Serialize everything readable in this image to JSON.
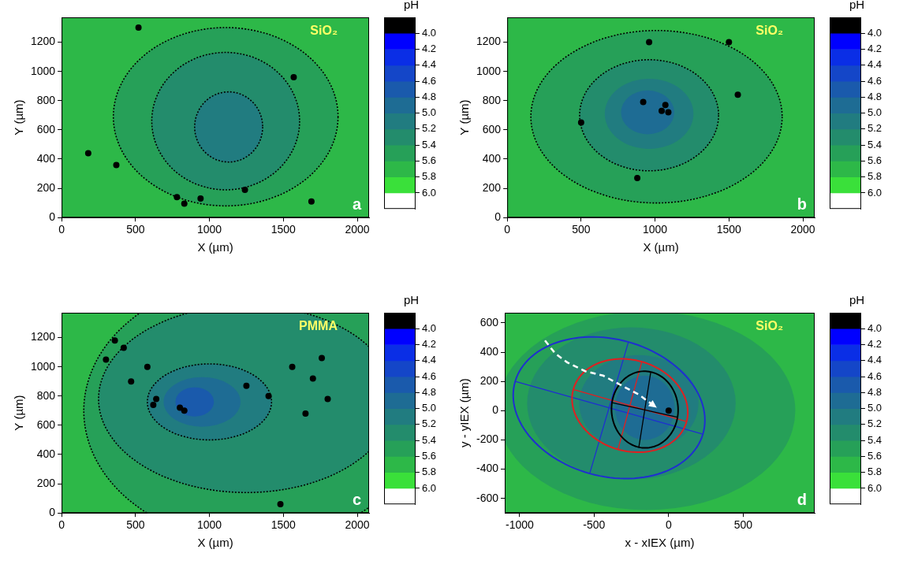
{
  "chart_data": [
    {
      "type": "heatmap",
      "panel": "a",
      "annotation": "SiO₂",
      "x_label": "X (µm)",
      "y_label": "Y (µm)",
      "xlim": [
        0,
        2080
      ],
      "xticks": [
        0,
        500,
        1000,
        1500,
        2000
      ],
      "ylim": [
        0,
        1370
      ],
      "yticks": [
        0,
        200,
        400,
        600,
        800,
        1000,
        1200
      ],
      "grid": false,
      "background_pH": 5.7,
      "regions": [
        {
          "pH": 5.5,
          "center": [
            1110,
            690
          ],
          "rx": 760,
          "ry": 610,
          "line_style": "dotted"
        },
        {
          "pH": 5.3,
          "center": [
            1110,
            660
          ],
          "rx": 500,
          "ry": 470,
          "line_style": "dotted"
        },
        {
          "pH": 5.1,
          "center": [
            1130,
            620
          ],
          "rx": 230,
          "ry": 240,
          "line_style": "dotted"
        }
      ],
      "series": [
        {
          "type": "scatter",
          "color": "#000000",
          "marker": "circle",
          "values": [
            [
              180,
              440
            ],
            [
              370,
              360
            ],
            [
              520,
              1300
            ],
            [
              780,
              140
            ],
            [
              830,
              95
            ],
            [
              940,
              130
            ],
            [
              1240,
              190
            ],
            [
              1570,
              960
            ],
            [
              1690,
              110
            ]
          ]
        }
      ],
      "colorbar": {
        "title": "pH",
        "ylim": [
          3.8,
          6.2
        ],
        "levels": [
          3.8,
          4.0,
          4.2,
          4.4,
          4.6,
          4.8,
          5.0,
          5.2,
          5.4,
          5.6,
          5.8,
          6.0,
          6.2
        ],
        "colors": [
          "#000000",
          "#0000ff",
          "#0a2ee6",
          "#1446c8",
          "#1a5aac",
          "#1e6c94",
          "#217c80",
          "#238c6c",
          "#26a058",
          "#2db848",
          "#3ae03a",
          "#ffffff"
        ],
        "yticks": [
          {
            "value": 4.0,
            "label": "4.0"
          },
          {
            "value": 4.2,
            "label": "4.2"
          },
          {
            "value": 4.4,
            "label": "4.4"
          },
          {
            "value": 4.6,
            "label": "4.6"
          },
          {
            "value": 4.8,
            "label": "4.8"
          },
          {
            "value": 5.0,
            "label": "5.0"
          },
          {
            "value": 5.2,
            "label": "5.2"
          },
          {
            "value": 5.4,
            "label": "5.4"
          },
          {
            "value": 5.6,
            "label": "5.6"
          },
          {
            "value": 5.8,
            "label": "5.8"
          },
          {
            "value": 6.0,
            "label": "6.0"
          }
        ]
      }
    },
    {
      "type": "heatmap",
      "panel": "b",
      "annotation": "SiO₂",
      "x_label": "X (µm)",
      "y_label": "Y (µm)",
      "xlim": [
        0,
        2080
      ],
      "xticks": [
        0,
        500,
        1000,
        1500,
        2000
      ],
      "ylim": [
        0,
        1370
      ],
      "yticks": [
        0,
        200,
        400,
        600,
        800,
        1000,
        1200
      ],
      "grid": false,
      "background_pH": 5.7,
      "regions": [
        {
          "pH": 5.5,
          "center": [
            1010,
            690
          ],
          "rx": 850,
          "ry": 590,
          "line_style": "dotted"
        },
        {
          "pH": 5.3,
          "center": [
            960,
            700
          ],
          "rx": 470,
          "ry": 380,
          "line_style": "dotted"
        },
        {
          "pH": 5.1,
          "center": [
            960,
            710
          ],
          "rx": 300,
          "ry": 240
        },
        {
          "pH": 4.9,
          "center": [
            950,
            720
          ],
          "rx": 180,
          "ry": 150
        }
      ],
      "series": [
        {
          "type": "scatter",
          "color": "#000000",
          "marker": "circle",
          "values": [
            [
              960,
              1200
            ],
            [
              1070,
              770
            ],
            [
              1045,
              730
            ],
            [
              1090,
              720
            ],
            [
              920,
              790
            ],
            [
              880,
              270
            ],
            [
              500,
              650
            ],
            [
              1560,
              840
            ],
            [
              1500,
              1200
            ]
          ]
        }
      ],
      "colorbar": {
        "title": "pH",
        "ylim": [
          3.8,
          6.2
        ],
        "levels": [
          3.8,
          4.0,
          4.2,
          4.4,
          4.6,
          4.8,
          5.0,
          5.2,
          5.4,
          5.6,
          5.8,
          6.0,
          6.2
        ],
        "colors": [
          "#000000",
          "#0000ff",
          "#0a2ee6",
          "#1446c8",
          "#1a5aac",
          "#1e6c94",
          "#217c80",
          "#238c6c",
          "#26a058",
          "#2db848",
          "#3ae03a",
          "#ffffff"
        ],
        "yticks": [
          {
            "value": 4.0,
            "label": "4.0"
          },
          {
            "value": 4.2,
            "label": "4.2"
          },
          {
            "value": 4.4,
            "label": "4.4"
          },
          {
            "value": 4.6,
            "label": "4.6"
          },
          {
            "value": 4.8,
            "label": "4.8"
          },
          {
            "value": 5.0,
            "label": "5.0"
          },
          {
            "value": 5.2,
            "label": "5.2"
          },
          {
            "value": 5.4,
            "label": "5.4"
          },
          {
            "value": 5.6,
            "label": "5.6"
          },
          {
            "value": 5.8,
            "label": "5.8"
          },
          {
            "value": 6.0,
            "label": "6.0"
          }
        ]
      }
    },
    {
      "type": "heatmap",
      "panel": "c",
      "annotation": "PMMA",
      "x_label": "X (µm)",
      "y_label": "Y (µm)",
      "xlim": [
        0,
        2080
      ],
      "xticks": [
        0,
        500,
        1000,
        1500,
        2000
      ],
      "ylim": [
        0,
        1370
      ],
      "yticks": [
        0,
        200,
        400,
        600,
        800,
        1000,
        1200
      ],
      "grid": false,
      "background_pH": 5.7,
      "regions": [
        {
          "pH": 5.5,
          "center": [
            1300,
            700
          ],
          "rx": 1150,
          "ry": 900,
          "line_style": "dotted"
        },
        {
          "pH": 5.3,
          "center": [
            1250,
            780
          ],
          "rx": 1000,
          "ry": 640,
          "line_style": "dotted"
        },
        {
          "pH": 5.1,
          "center": [
            1000,
            760
          ],
          "rx": 420,
          "ry": 260,
          "line_style": "dotted"
        },
        {
          "pH": 4.9,
          "center": [
            950,
            760
          ],
          "rx": 260,
          "ry": 170
        },
        {
          "pH": 4.7,
          "center": [
            900,
            760
          ],
          "rx": 130,
          "ry": 100
        }
      ],
      "series": [
        {
          "type": "scatter",
          "color": "#000000",
          "marker": "circle",
          "values": [
            [
              620,
              740
            ],
            [
              800,
              720
            ],
            [
              830,
              700
            ],
            [
              640,
              780
            ],
            [
              360,
              1180
            ],
            [
              420,
              1130
            ],
            [
              580,
              1000
            ],
            [
              470,
              900
            ],
            [
              300,
              1050
            ],
            [
              1250,
              870
            ],
            [
              1400,
              800
            ],
            [
              1560,
              1000
            ],
            [
              1650,
              680
            ],
            [
              1700,
              920
            ],
            [
              1760,
              1060
            ],
            [
              1800,
              780
            ],
            [
              1480,
              60
            ]
          ]
        }
      ],
      "colorbar": {
        "title": "pH",
        "ylim": [
          3.8,
          6.2
        ],
        "levels": [
          3.8,
          4.0,
          4.2,
          4.4,
          4.6,
          4.8,
          5.0,
          5.2,
          5.4,
          5.6,
          5.8,
          6.0,
          6.2
        ],
        "colors": [
          "#000000",
          "#0000ff",
          "#0a2ee6",
          "#1446c8",
          "#1a5aac",
          "#1e6c94",
          "#217c80",
          "#238c6c",
          "#26a058",
          "#2db848",
          "#3ae03a",
          "#ffffff"
        ],
        "yticks": [
          {
            "value": 4.0,
            "label": "4.0"
          },
          {
            "value": 4.2,
            "label": "4.2"
          },
          {
            "value": 4.4,
            "label": "4.4"
          },
          {
            "value": 4.6,
            "label": "4.6"
          },
          {
            "value": 4.8,
            "label": "4.8"
          },
          {
            "value": 5.0,
            "label": "5.0"
          },
          {
            "value": 5.2,
            "label": "5.2"
          },
          {
            "value": 5.4,
            "label": "5.4"
          },
          {
            "value": 5.6,
            "label": "5.6"
          },
          {
            "value": 5.8,
            "label": "5.8"
          },
          {
            "value": 6.0,
            "label": "6.0"
          }
        ]
      }
    },
    {
      "type": "heatmap",
      "panel": "d",
      "annotation": "SiO₂",
      "x_label": "x - xIEX (µm)",
      "y_label": "y - yIEX (µm)",
      "xlim": [
        -1100,
        980
      ],
      "xticks": [
        -1000,
        -500,
        0,
        500
      ],
      "ylim": [
        -700,
        670
      ],
      "yticks": [
        -600,
        -400,
        -200,
        0,
        200,
        400,
        600
      ],
      "grid": false,
      "background_pH": 5.7,
      "regions": [
        {
          "pH": 5.5,
          "center": [
            -150,
            0
          ],
          "rx": 1000,
          "ry": 680
        },
        {
          "pH": 5.3,
          "center": [
            -250,
            50
          ],
          "rx": 700,
          "ry": 520
        },
        {
          "pH": 5.1,
          "center": [
            -200,
            50
          ],
          "rx": 400,
          "ry": 330
        },
        {
          "pH": 4.9,
          "center": [
            -160,
            20
          ],
          "rx": 200,
          "ry": 220
        }
      ],
      "ellipses": [
        {
          "color": "#1f2fd0",
          "major": [
            [
              -1030,
              200
            ],
            [
              230,
              -160
            ]
          ],
          "minor": [
            [
              -530,
              -430
            ],
            [
              -270,
              470
            ]
          ]
        },
        {
          "color": "#e02020",
          "major": [
            [
              -640,
              145
            ],
            [
              120,
              -75
            ]
          ],
          "minor": [
            [
              -340,
              -265
            ],
            [
              -180,
              335
            ]
          ]
        },
        {
          "color": "#000000",
          "major": [
            [
              -200,
              -250
            ],
            [
              -120,
              265
            ]
          ],
          "minor": [
            [
              -380,
              55
            ],
            [
              60,
              -45
            ]
          ]
        }
      ],
      "series": [
        {
          "type": "line",
          "color": "#ffffff",
          "line_style": "dashed",
          "marker": "arrow",
          "values": [
            [
              -830,
              480
            ],
            [
              -760,
              390
            ],
            [
              -680,
              330
            ],
            [
              -560,
              270
            ],
            [
              -440,
              240
            ],
            [
              -330,
              180
            ],
            [
              -200,
              110
            ],
            [
              -80,
              20
            ]
          ]
        },
        {
          "type": "scatter",
          "color": "#000000",
          "marker": "circle",
          "values": [
            [
              0,
              0
            ]
          ]
        }
      ],
      "colorbar": {
        "title": "pH",
        "ylim": [
          3.8,
          6.2
        ],
        "levels": [
          3.8,
          4.0,
          4.2,
          4.4,
          4.6,
          4.8,
          5.0,
          5.2,
          5.4,
          5.6,
          5.8,
          6.0,
          6.2
        ],
        "colors": [
          "#000000",
          "#0000ff",
          "#0a2ee6",
          "#1446c8",
          "#1a5aac",
          "#1e6c94",
          "#217c80",
          "#238c6c",
          "#26a058",
          "#2db848",
          "#3ae03a",
          "#ffffff"
        ],
        "yticks": [
          {
            "value": 4.0,
            "label": "4.0"
          },
          {
            "value": 4.2,
            "label": "4.2"
          },
          {
            "value": 4.4,
            "label": "4.4"
          },
          {
            "value": 4.6,
            "label": "4.6"
          },
          {
            "value": 4.8,
            "label": "4.8"
          },
          {
            "value": 5.0,
            "label": "5.0"
          },
          {
            "value": 5.2,
            "label": "5.2"
          },
          {
            "value": 5.4,
            "label": "5.4"
          },
          {
            "value": 5.6,
            "label": "5.6"
          },
          {
            "value": 5.8,
            "label": "5.8"
          },
          {
            "value": 6.0,
            "label": "6.0"
          }
        ]
      }
    }
  ]
}
